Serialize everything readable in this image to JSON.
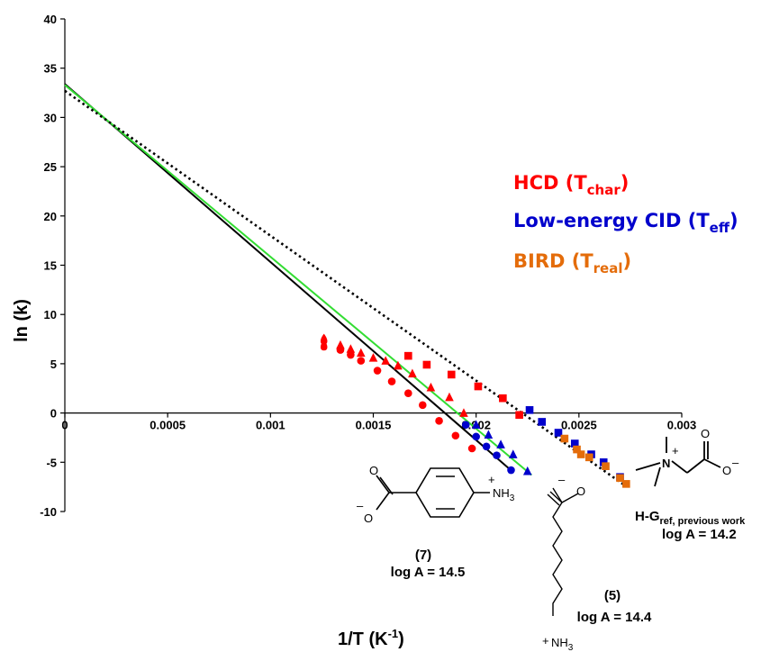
{
  "chart_data": {
    "type": "scatter",
    "xlabel": "1/T (K",
    "xlabel_sup": "-1",
    "xlabel_end": ")",
    "ylabel": "ln (k)",
    "xlim": [
      0,
      0.003
    ],
    "ylim": [
      -10,
      40
    ],
    "x_ticks": [
      0,
      0.0005,
      0.001,
      0.0015,
      0.002,
      0.0025,
      0.003
    ],
    "x_tick_labels": [
      "0",
      "0.0005",
      "0.001",
      "0.0015",
      "0.002",
      "0.0025",
      "0.003"
    ],
    "y_ticks": [
      -10,
      -5,
      0,
      5,
      10,
      15,
      20,
      25,
      30,
      35,
      40
    ],
    "y_tick_labels": [
      "-10",
      "-5",
      "0",
      "5",
      "10",
      "15",
      "20",
      "25",
      "30",
      "35",
      "40"
    ],
    "legend_position": "right",
    "legend": [
      {
        "text": "HCD (T",
        "sub": "char",
        "end": ")",
        "color": "#ff0000"
      },
      {
        "text": "Low-energy CID (T",
        "sub": "eff",
        "end": ")",
        "color": "#0000cc"
      },
      {
        "text": "BIRD (T",
        "sub": "real",
        "end": ")",
        "color": "#e46c0a"
      }
    ],
    "series": [
      {
        "kind": "hcd",
        "marker": "drop",
        "color": "#ff0000",
        "points": [
          [
            0.00126,
            7.4
          ],
          [
            0.00126,
            6.8
          ]
        ]
      },
      {
        "kind": "hcd",
        "marker": "circle",
        "color": "#ff0000",
        "points": [
          [
            0.00134,
            6.4
          ],
          [
            0.00139,
            5.9
          ],
          [
            0.00144,
            5.3
          ],
          [
            0.00152,
            4.3
          ],
          [
            0.00159,
            3.2
          ],
          [
            0.00167,
            2.0
          ],
          [
            0.00174,
            0.8
          ],
          [
            0.00182,
            -0.8
          ],
          [
            0.0019,
            -2.3
          ],
          [
            0.00198,
            -3.6
          ]
        ]
      },
      {
        "kind": "hcd",
        "marker": "triangle",
        "color": "#ff0000",
        "points": [
          [
            0.00134,
            6.9
          ],
          [
            0.00139,
            6.5
          ],
          [
            0.00144,
            6.1
          ],
          [
            0.0015,
            5.6
          ],
          [
            0.00156,
            5.3
          ],
          [
            0.00162,
            4.8
          ],
          [
            0.00169,
            4.0
          ],
          [
            0.00178,
            2.6
          ],
          [
            0.00187,
            1.6
          ],
          [
            0.00194,
            0.0
          ]
        ]
      },
      {
        "kind": "hcd",
        "marker": "square",
        "color": "#ff0000",
        "points": [
          [
            0.00167,
            5.8
          ],
          [
            0.00176,
            4.9
          ],
          [
            0.00188,
            3.9
          ],
          [
            0.00201,
            2.7
          ],
          [
            0.00213,
            1.5
          ],
          [
            0.00221,
            -0.2
          ]
        ]
      },
      {
        "kind": "cid",
        "marker": "circle",
        "color": "#0000cc",
        "points": [
          [
            0.00195,
            -1.2
          ],
          [
            0.002,
            -2.4
          ],
          [
            0.00205,
            -3.4
          ],
          [
            0.0021,
            -4.3
          ],
          [
            0.00217,
            -5.8
          ]
        ]
      },
      {
        "kind": "cid",
        "marker": "triangle",
        "color": "#0000cc",
        "points": [
          [
            0.002,
            -1.2
          ],
          [
            0.00206,
            -2.2
          ],
          [
            0.00212,
            -3.2
          ],
          [
            0.00218,
            -4.2
          ],
          [
            0.00225,
            -5.9
          ]
        ]
      },
      {
        "kind": "cid",
        "marker": "square",
        "color": "#0000cc",
        "points": [
          [
            0.00226,
            0.3
          ],
          [
            0.00232,
            -0.9
          ],
          [
            0.0024,
            -2.0
          ],
          [
            0.00248,
            -3.1
          ],
          [
            0.00256,
            -4.2
          ],
          [
            0.00262,
            -5.0
          ],
          [
            0.0027,
            -6.5
          ]
        ]
      },
      {
        "kind": "bird",
        "marker": "square",
        "color": "#e46c0a",
        "points": [
          [
            0.00243,
            -2.6
          ],
          [
            0.00249,
            -3.7
          ],
          [
            0.00251,
            -4.2
          ],
          [
            0.00255,
            -4.5
          ],
          [
            0.00263,
            -5.4
          ],
          [
            0.0027,
            -6.6
          ],
          [
            0.00273,
            -7.2
          ]
        ]
      }
    ],
    "lines": [
      {
        "name": "fit-7",
        "color": "#000000",
        "style": "solid",
        "points": [
          [
            0,
            33.4
          ],
          [
            0.00218,
            -6.0
          ]
        ]
      },
      {
        "name": "fit-5",
        "color": "#33dd33",
        "style": "solid",
        "points": [
          [
            0,
            33.3
          ],
          [
            0.00227,
            -6.3
          ]
        ]
      },
      {
        "name": "fit-ref",
        "color": "#000000",
        "style": "dotted",
        "points": [
          [
            0,
            32.7
          ],
          [
            0.00272,
            -7.3
          ]
        ]
      }
    ],
    "annotations": {
      "compound7_id": "(7)",
      "compound7_logA": "log A = 14.5",
      "compound5_id": "(5)",
      "compound5_logA": "log A = 14.4",
      "ref_label": "H-G",
      "ref_sub": "ref, previous work",
      "ref_logA": "log A = 14.2",
      "nh3": "NH",
      "nh3_sub": "3",
      "plus": "+",
      "minus": "–",
      "o_label": "O",
      "n_label": "N"
    }
  }
}
